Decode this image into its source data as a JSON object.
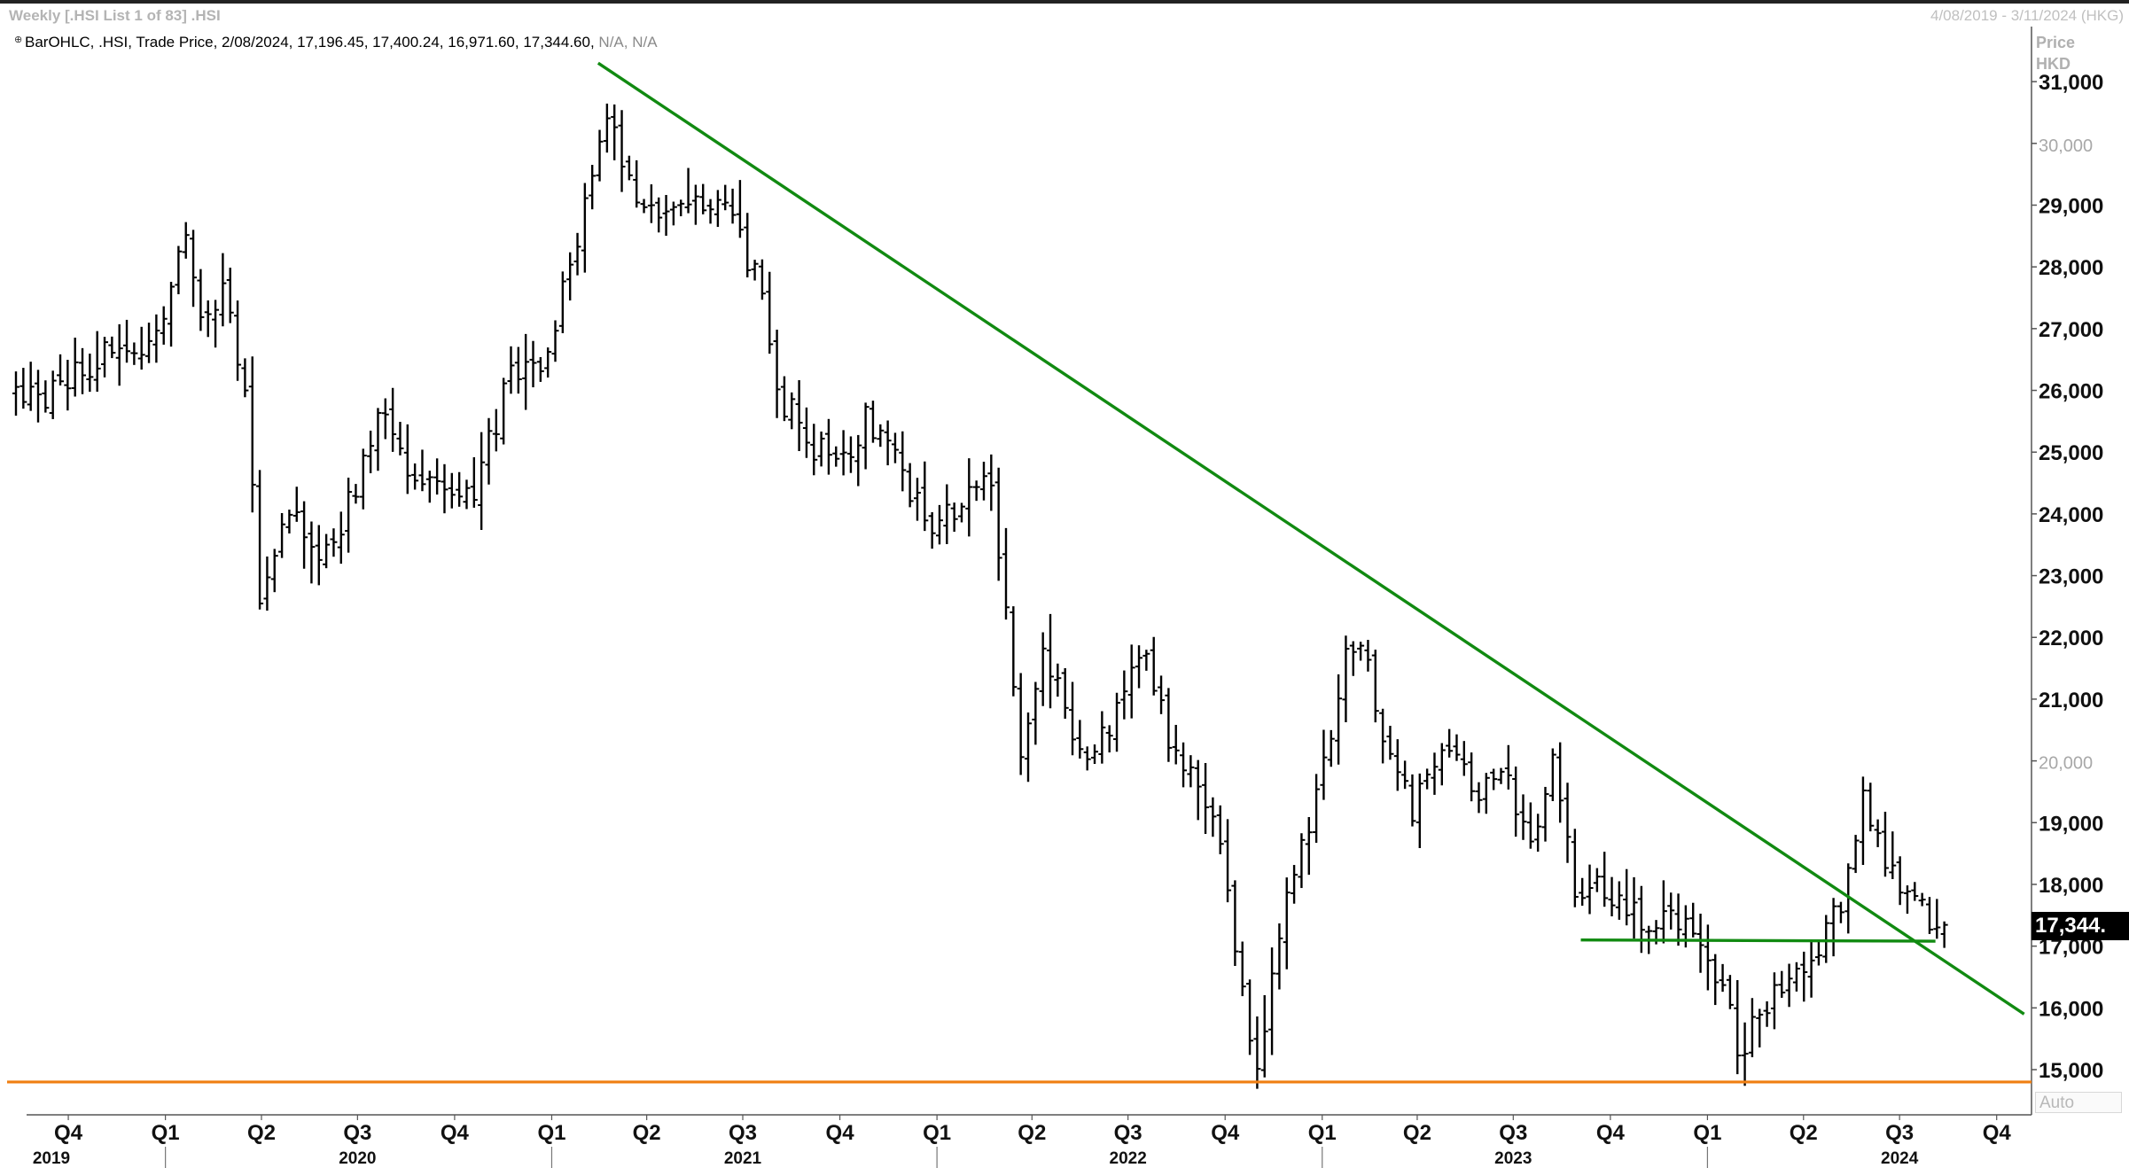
{
  "header": {
    "window_title": "Weekly [.HSI List 1 of 83] .HSI",
    "date_range": "4/08/2019 - 3/11/2024 (HKG)",
    "series_name": "BarOHLC, .HSI, Trade Price,",
    "series_values": "2/08/2024, 17,196.45, 17,400.24, 16,971.60, 17,344.60,",
    "series_na": "N/A, N/A"
  },
  "axis": {
    "unit_line1": "Price",
    "unit_line2": "HKD",
    "last_value_label": "17,344.",
    "auto_label": "Auto"
  },
  "colors": {
    "bars": "#000000",
    "trendline": "#118a11",
    "support": "#f07f12",
    "background": "#ffffff"
  },
  "chart_data": {
    "type": "ohlc",
    "ylabel": "Price HKD",
    "ylim": [
      14600,
      31500
    ],
    "x_start": "2019-08-04",
    "x_end": "2024-11-03",
    "y_ticks": [
      {
        "value": 15000,
        "label": "15,000",
        "bold": true
      },
      {
        "value": 16000,
        "label": "16,000",
        "bold": true
      },
      {
        "value": 17000,
        "label": "17,000",
        "bold": true
      },
      {
        "value": 18000,
        "label": "18,000",
        "bold": true
      },
      {
        "value": 19000,
        "label": "19,000",
        "bold": true
      },
      {
        "value": 20000,
        "label": "20,000",
        "bold": false
      },
      {
        "value": 21000,
        "label": "21,000",
        "bold": true
      },
      {
        "value": 22000,
        "label": "22,000",
        "bold": true
      },
      {
        "value": 23000,
        "label": "23,000",
        "bold": true
      },
      {
        "value": 24000,
        "label": "24,000",
        "bold": true
      },
      {
        "value": 25000,
        "label": "25,000",
        "bold": true
      },
      {
        "value": 26000,
        "label": "26,000",
        "bold": true
      },
      {
        "value": 27000,
        "label": "27,000",
        "bold": true
      },
      {
        "value": 28000,
        "label": "28,000",
        "bold": true
      },
      {
        "value": 29000,
        "label": "29,000",
        "bold": true
      },
      {
        "value": 30000,
        "label": "30,000",
        "bold": false
      },
      {
        "value": 31000,
        "label": "31,000",
        "bold": true
      }
    ],
    "quarter_ticks": [
      {
        "date": "2019-10-01",
        "label": "Q4"
      },
      {
        "date": "2020-01-01",
        "label": "Q1"
      },
      {
        "date": "2020-04-01",
        "label": "Q2"
      },
      {
        "date": "2020-07-01",
        "label": "Q3"
      },
      {
        "date": "2020-10-01",
        "label": "Q4"
      },
      {
        "date": "2021-01-01",
        "label": "Q1"
      },
      {
        "date": "2021-04-01",
        "label": "Q2"
      },
      {
        "date": "2021-07-01",
        "label": "Q3"
      },
      {
        "date": "2021-10-01",
        "label": "Q4"
      },
      {
        "date": "2022-01-01",
        "label": "Q1"
      },
      {
        "date": "2022-04-01",
        "label": "Q2"
      },
      {
        "date": "2022-07-01",
        "label": "Q3"
      },
      {
        "date": "2022-10-01",
        "label": "Q4"
      },
      {
        "date": "2023-01-01",
        "label": "Q1"
      },
      {
        "date": "2023-04-01",
        "label": "Q2"
      },
      {
        "date": "2023-07-01",
        "label": "Q3"
      },
      {
        "date": "2023-10-01",
        "label": "Q4"
      },
      {
        "date": "2024-01-01",
        "label": "Q1"
      },
      {
        "date": "2024-04-01",
        "label": "Q2"
      },
      {
        "date": "2024-07-01",
        "label": "Q3"
      },
      {
        "date": "2024-10-01",
        "label": "Q4"
      }
    ],
    "year_labels": [
      {
        "date": "2019-09-15",
        "label": "2019"
      },
      {
        "date": "2020-07-01",
        "label": "2020"
      },
      {
        "date": "2021-07-01",
        "label": "2021"
      },
      {
        "date": "2022-07-01",
        "label": "2022"
      },
      {
        "date": "2023-07-01",
        "label": "2023"
      },
      {
        "date": "2024-07-01",
        "label": "2024"
      }
    ],
    "year_dividers": [
      "2020-01-01",
      "2021-01-01",
      "2022-01-01",
      "2023-01-01",
      "2024-01-01"
    ],
    "anchors": [
      [
        "2019-08-04",
        26000
      ],
      [
        "2019-09-01",
        25800
      ],
      [
        "2019-10-06",
        26300
      ],
      [
        "2019-11-10",
        26700
      ],
      [
        "2019-12-08",
        26600
      ],
      [
        "2020-01-12",
        28600
      ],
      [
        "2020-01-26",
        27200
      ],
      [
        "2020-02-16",
        27500
      ],
      [
        "2020-03-08",
        26000
      ],
      [
        "2020-03-22",
        22700
      ],
      [
        "2020-04-19",
        24200
      ],
      [
        "2020-05-24",
        23300
      ],
      [
        "2020-06-21",
        24500
      ],
      [
        "2020-07-12",
        25600
      ],
      [
        "2020-08-09",
        24800
      ],
      [
        "2020-09-06",
        24600
      ],
      [
        "2020-10-11",
        24300
      ],
      [
        "2020-11-15",
        26300
      ],
      [
        "2020-12-13",
        26500
      ],
      [
        "2021-01-10",
        27900
      ],
      [
        "2021-01-31",
        29400
      ],
      [
        "2021-02-14",
        30600
      ],
      [
        "2021-03-14",
        28900
      ],
      [
        "2021-04-18",
        28800
      ],
      [
        "2021-05-30",
        29000
      ],
      [
        "2021-07-11",
        27800
      ],
      [
        "2021-07-25",
        26000
      ],
      [
        "2021-08-22",
        25200
      ],
      [
        "2021-09-19",
        24800
      ],
      [
        "2021-10-17",
        25500
      ],
      [
        "2021-11-14",
        25000
      ],
      [
        "2021-12-12",
        23900
      ],
      [
        "2022-01-16",
        24100
      ],
      [
        "2022-02-13",
        24500
      ],
      [
        "2022-02-27",
        22400
      ],
      [
        "2022-03-13",
        20300
      ],
      [
        "2022-04-03",
        21800
      ],
      [
        "2022-05-01",
        20600
      ],
      [
        "2022-05-22",
        20000
      ],
      [
        "2022-06-19",
        21300
      ],
      [
        "2022-07-10",
        21600
      ],
      [
        "2022-08-07",
        20000
      ],
      [
        "2022-09-11",
        19200
      ],
      [
        "2022-10-02",
        17100
      ],
      [
        "2022-10-23",
        15000
      ],
      [
        "2022-11-06",
        16500
      ],
      [
        "2022-11-27",
        18300
      ],
      [
        "2022-12-18",
        19500
      ],
      [
        "2023-01-15",
        21700
      ],
      [
        "2023-01-29",
        21900
      ],
      [
        "2023-02-19",
        20400
      ],
      [
        "2023-03-19",
        19100
      ],
      [
        "2023-04-16",
        20300
      ],
      [
        "2023-05-21",
        19400
      ],
      [
        "2023-06-18",
        19800
      ],
      [
        "2023-07-09",
        18500
      ],
      [
        "2023-07-30",
        19900
      ],
      [
        "2023-08-20",
        18000
      ],
      [
        "2023-09-24",
        17800
      ],
      [
        "2023-10-29",
        17400
      ],
      [
        "2023-11-26",
        17400
      ],
      [
        "2023-12-17",
        16900
      ],
      [
        "2024-01-14",
        16100
      ],
      [
        "2024-01-21",
        15200
      ],
      [
        "2024-02-11",
        15900
      ],
      [
        "2024-03-10",
        16700
      ],
      [
        "2024-04-07",
        16800
      ],
      [
        "2024-04-28",
        17800
      ],
      [
        "2024-05-19",
        19300
      ],
      [
        "2024-06-09",
        18300
      ],
      [
        "2024-07-07",
        17700
      ],
      [
        "2024-07-28",
        17300
      ],
      [
        "2024-08-04",
        17344.6
      ]
    ],
    "trendlines": [
      {
        "type": "downtrend",
        "from": [
          "2021-02-14",
          31300
        ],
        "to": [
          "2024-10-27",
          15900
        ]
      },
      {
        "type": "resistance",
        "from": [
          "2023-09-03",
          17100
        ],
        "to": [
          "2024-08-04",
          17080
        ]
      },
      {
        "type": "support",
        "from": [
          "2019-08-04",
          14800
        ],
        "to": [
          "2024-11-03",
          14800
        ]
      }
    ],
    "last_bar": {
      "date": "2/08/2024",
      "open": 17196.45,
      "high": 17400.24,
      "low": 16971.6,
      "close": 17344.6
    }
  }
}
